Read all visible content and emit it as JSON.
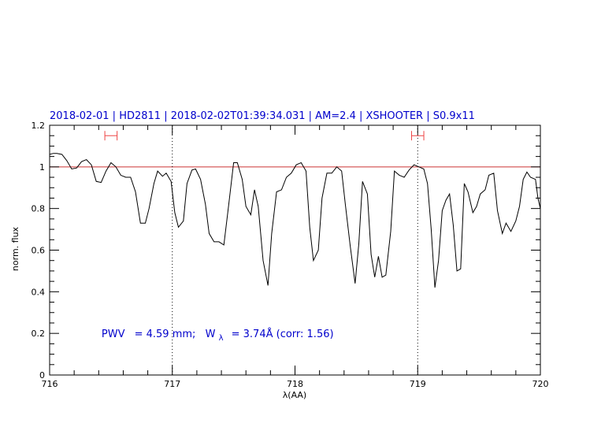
{
  "chart_data": {
    "type": "line",
    "title": "2018-02-01 | HD2811 | 2018-02-02T01:39:34.031 | AM=2.4 | XSHOOTER | S0.9x11",
    "xlabel": "λ(AA)",
    "ylabel": "norm. flux",
    "xlim": [
      716,
      720
    ],
    "ylim": [
      0,
      1.2
    ],
    "xticks": [
      716,
      717,
      718,
      719,
      720
    ],
    "xtick_labels": [
      "716",
      "717",
      "718",
      "719",
      "720"
    ],
    "yticks": [
      0,
      0.2,
      0.4,
      0.6,
      0.8,
      1,
      1.2
    ],
    "ytick_labels": [
      "0",
      "0.2",
      "0.4",
      "0.6",
      "0.8",
      "1",
      "1.2"
    ],
    "reference_line": {
      "y": 1.0,
      "color": "#cc3333"
    },
    "vertical_markers": [
      717.0,
      719.0
    ],
    "range_markers": [
      {
        "x0": 716.45,
        "x1": 716.55,
        "y": 1.15,
        "color": "#ee4444"
      },
      {
        "x0": 718.95,
        "x1": 719.05,
        "y": 1.15,
        "color": "#ee4444"
      }
    ],
    "annotation": {
      "pwv_label": "PWV",
      "pwv_text": "= 4.59  mm;",
      "w_symbol": "W",
      "w_sub": "λ",
      "w_text": "= 3.74Å  (corr: 1.56)",
      "x": 716.5,
      "y": 0.2
    },
    "series": [
      {
        "color": "#000000",
        "x": [
          716.0,
          716.03,
          716.06,
          716.1,
          716.14,
          716.18,
          716.22,
          716.26,
          716.3,
          716.34,
          716.38,
          716.42,
          716.46,
          716.5,
          716.54,
          716.58,
          716.62,
          716.66,
          716.7,
          716.74,
          716.78,
          716.81,
          716.85,
          716.88,
          716.92,
          716.95,
          716.99,
          717.02,
          717.05,
          717.09,
          717.12,
          717.16,
          717.19,
          717.23,
          717.27,
          717.3,
          717.34,
          717.38,
          717.42,
          717.46,
          717.5,
          717.53,
          717.57,
          717.6,
          717.64,
          717.67,
          717.7,
          717.74,
          717.78,
          717.81,
          717.85,
          717.89,
          717.93,
          717.97,
          718.01,
          718.05,
          718.09,
          718.12,
          718.15,
          718.19,
          718.22,
          718.26,
          718.3,
          718.34,
          718.38,
          718.41,
          718.45,
          718.49,
          718.52,
          718.55,
          718.59,
          718.62,
          718.65,
          718.68,
          718.71,
          718.74,
          718.78,
          718.81,
          718.85,
          718.89,
          718.93,
          718.97,
          719.01,
          719.05,
          719.08,
          719.11,
          719.14,
          719.17,
          719.2,
          719.23,
          719.26,
          719.29,
          719.32,
          719.35,
          719.38,
          719.41,
          719.45,
          719.48,
          719.51,
          719.55,
          719.58,
          719.62,
          719.65,
          719.69,
          719.72,
          719.76,
          719.8,
          719.83,
          719.86,
          719.89,
          719.92,
          719.96,
          719.98,
          720.0
        ],
        "y": [
          1.06,
          1.065,
          1.065,
          1.06,
          1.03,
          0.99,
          0.995,
          1.025,
          1.035,
          1.01,
          0.93,
          0.925,
          0.98,
          1.02,
          1.0,
          0.96,
          0.95,
          0.95,
          0.88,
          0.73,
          0.73,
          0.8,
          0.92,
          0.98,
          0.955,
          0.97,
          0.93,
          0.78,
          0.71,
          0.74,
          0.92,
          0.985,
          0.99,
          0.94,
          0.82,
          0.68,
          0.64,
          0.64,
          0.625,
          0.82,
          1.02,
          1.02,
          0.94,
          0.81,
          0.77,
          0.89,
          0.81,
          0.55,
          0.43,
          0.68,
          0.88,
          0.89,
          0.95,
          0.97,
          1.01,
          1.02,
          0.98,
          0.71,
          0.55,
          0.6,
          0.85,
          0.97,
          0.97,
          1.0,
          0.98,
          0.82,
          0.62,
          0.44,
          0.63,
          0.93,
          0.87,
          0.58,
          0.47,
          0.57,
          0.47,
          0.48,
          0.69,
          0.98,
          0.96,
          0.95,
          0.985,
          1.01,
          1.0,
          0.99,
          0.92,
          0.7,
          0.42,
          0.55,
          0.79,
          0.84,
          0.87,
          0.72,
          0.5,
          0.51,
          0.92,
          0.88,
          0.78,
          0.81,
          0.87,
          0.89,
          0.96,
          0.97,
          0.79,
          0.68,
          0.73,
          0.69,
          0.74,
          0.81,
          0.94,
          0.975,
          0.95,
          0.94,
          0.85,
          0.8
        ]
      }
    ]
  }
}
